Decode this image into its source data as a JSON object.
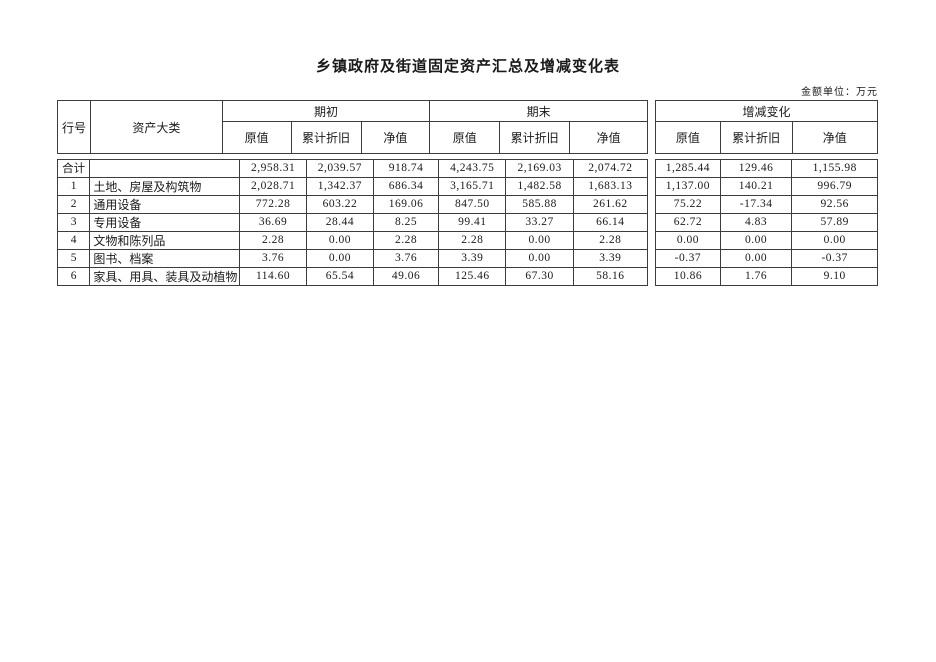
{
  "page": {
    "title": "乡镇政府及街道固定资产汇总及增减变化表",
    "unit_note": "金额单位：万元"
  },
  "colors": {
    "background": "#ffffff",
    "border": "#3d3d3d",
    "text": "#1a1a1a"
  },
  "table": {
    "headers": {
      "row_no": "行号",
      "category": "资产大类",
      "group_beginning": "期初",
      "group_ending": "期末",
      "group_change": "增减变化",
      "sub_original": "原值",
      "sub_depreciation": "累计折旧",
      "sub_net": "净值"
    },
    "rows": [
      {
        "no": "合计",
        "category": "",
        "beginning": [
          "2,958.31",
          "2,039.57",
          "918.74"
        ],
        "ending": [
          "4,243.75",
          "2,169.03",
          "2,074.72"
        ],
        "change": [
          "1,285.44",
          "129.46",
          "1,155.98"
        ]
      },
      {
        "no": "1",
        "category": "土地、房屋及构筑物",
        "beginning": [
          "2,028.71",
          "1,342.37",
          "686.34"
        ],
        "ending": [
          "3,165.71",
          "1,482.58",
          "1,683.13"
        ],
        "change": [
          "1,137.00",
          "140.21",
          "996.79"
        ]
      },
      {
        "no": "2",
        "category": "通用设备",
        "beginning": [
          "772.28",
          "603.22",
          "169.06"
        ],
        "ending": [
          "847.50",
          "585.88",
          "261.62"
        ],
        "change": [
          "75.22",
          "-17.34",
          "92.56"
        ]
      },
      {
        "no": "3",
        "category": "专用设备",
        "beginning": [
          "36.69",
          "28.44",
          "8.25"
        ],
        "ending": [
          "99.41",
          "33.27",
          "66.14"
        ],
        "change": [
          "62.72",
          "4.83",
          "57.89"
        ]
      },
      {
        "no": "4",
        "category": "文物和陈列品",
        "beginning": [
          "2.28",
          "0.00",
          "2.28"
        ],
        "ending": [
          "2.28",
          "0.00",
          "2.28"
        ],
        "change": [
          "0.00",
          "0.00",
          "0.00"
        ]
      },
      {
        "no": "5",
        "category": "图书、档案",
        "beginning": [
          "3.76",
          "0.00",
          "3.76"
        ],
        "ending": [
          "3.39",
          "0.00",
          "3.39"
        ],
        "change": [
          "-0.37",
          "0.00",
          "-0.37"
        ]
      },
      {
        "no": "6",
        "category": "家具、用具、装具及动植物",
        "beginning": [
          "114.60",
          "65.54",
          "49.06"
        ],
        "ending": [
          "125.46",
          "67.30",
          "58.16"
        ],
        "change": [
          "10.86",
          "1.76",
          "9.10"
        ]
      }
    ]
  }
}
